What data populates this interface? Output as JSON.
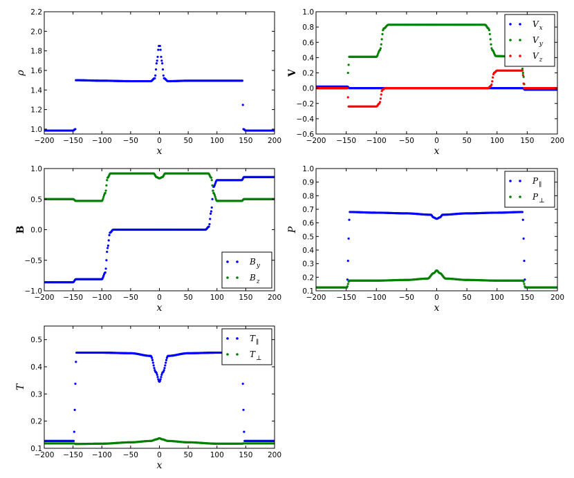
{
  "colors": {
    "blue": "#0000ff",
    "green": "#008000",
    "red": "#ff0000"
  },
  "chart_data": [
    {
      "type": "scatter",
      "ylabel": "ρ",
      "xlabel": "x",
      "xlim": [
        -200,
        200
      ],
      "ylim": [
        0.95,
        2.2
      ],
      "xticks": [
        -200,
        -150,
        -100,
        -50,
        0,
        50,
        100,
        150,
        200
      ],
      "yticks": [
        1.0,
        1.2,
        1.4,
        1.6,
        1.8,
        2.0,
        2.2
      ],
      "ytick_labels": [
        "1.0",
        "1.2",
        "1.4",
        "1.6",
        "1.8",
        "2.0",
        "2.2"
      ],
      "legend": "none",
      "series": [
        {
          "color": "#0000ff",
          "points": [
            [
              -200,
              0.985
            ],
            [
              -150,
              0.985
            ],
            [
              -146,
              1.0
            ],
            [
              -145,
              1.5
            ],
            [
              -100,
              1.495
            ],
            [
              -50,
              1.49
            ],
            [
              -15,
              1.49
            ],
            [
              -8,
              1.52
            ],
            [
              -4,
              1.7
            ],
            [
              -1,
              1.85
            ],
            [
              1,
              1.85
            ],
            [
              4,
              1.7
            ],
            [
              8,
              1.52
            ],
            [
              15,
              1.49
            ],
            [
              50,
              1.495
            ],
            [
              100,
              1.495
            ],
            [
              144,
              1.495
            ],
            [
              146,
              1.0
            ],
            [
              150,
              0.985
            ],
            [
              200,
              0.985
            ]
          ]
        }
      ]
    },
    {
      "type": "scatter",
      "ylabel": "V",
      "xlabel": "x",
      "xlim": [
        -200,
        200
      ],
      "ylim": [
        -0.6,
        1.0
      ],
      "xticks": [
        -200,
        -150,
        -100,
        -50,
        0,
        50,
        100,
        150,
        200
      ],
      "yticks": [
        -0.6,
        -0.4,
        -0.2,
        0.0,
        0.2,
        0.4,
        0.6,
        0.8,
        1.0
      ],
      "ytick_labels": [
        "−0.6",
        "−0.4",
        "−0.2",
        "0.0",
        "0.2",
        "0.4",
        "0.6",
        "0.8",
        "1.0"
      ],
      "legend": "top-right",
      "series": [
        {
          "name": "V",
          "sub": "x",
          "color": "#0000ff",
          "points": [
            [
              -200,
              0.02
            ],
            [
              -148,
              0.02
            ],
            [
              -145,
              0.0
            ],
            [
              143,
              0.0
            ],
            [
              146,
              -0.02
            ],
            [
              200,
              -0.02
            ]
          ]
        },
        {
          "name": "V",
          "sub": "y",
          "color": "#008000",
          "points": [
            [
              -200,
              0.0
            ],
            [
              -148,
              0.0
            ],
            [
              -147,
              0.2
            ],
            [
              -145,
              0.41
            ],
            [
              -100,
              0.41
            ],
            [
              -94,
              0.5
            ],
            [
              -88,
              0.78
            ],
            [
              -80,
              0.83
            ],
            [
              80,
              0.83
            ],
            [
              86,
              0.78
            ],
            [
              92,
              0.5
            ],
            [
              98,
              0.42
            ],
            [
              140,
              0.41
            ],
            [
              143,
              0.2
            ],
            [
              146,
              0.0
            ],
            [
              200,
              0.0
            ]
          ]
        },
        {
          "name": "V",
          "sub": "z",
          "color": "#ff0000",
          "points": [
            [
              -200,
              0.0
            ],
            [
              -148,
              0.0
            ],
            [
              -146,
              -0.24
            ],
            [
              -100,
              -0.24
            ],
            [
              -95,
              -0.2
            ],
            [
              -90,
              -0.02
            ],
            [
              -85,
              0.0
            ],
            [
              85,
              0.0
            ],
            [
              90,
              0.03
            ],
            [
              95,
              0.2
            ],
            [
              100,
              0.23
            ],
            [
              142,
              0.23
            ],
            [
              145,
              0.0
            ],
            [
              200,
              0.0
            ]
          ]
        }
      ]
    },
    {
      "type": "scatter",
      "ylabel": "B",
      "xlabel": "x",
      "xlim": [
        -200,
        200
      ],
      "ylim": [
        -1.0,
        1.0
      ],
      "xticks": [
        -200,
        -150,
        -100,
        -50,
        0,
        50,
        100,
        150,
        200
      ],
      "yticks": [
        -1.0,
        -0.5,
        0.0,
        0.5,
        1.0
      ],
      "ytick_labels": [
        "−1.0",
        "−0.5",
        "0.0",
        "0.5",
        "1.0"
      ],
      "legend": "bottom-right",
      "series": [
        {
          "name": "B",
          "sub": "y",
          "color": "#0000ff",
          "points": [
            [
              -200,
              -0.86
            ],
            [
              -150,
              -0.86
            ],
            [
              -145,
              -0.81
            ],
            [
              -100,
              -0.81
            ],
            [
              -94,
              -0.7
            ],
            [
              -90,
              -0.3
            ],
            [
              -86,
              -0.05
            ],
            [
              -80,
              0.0
            ],
            [
              80,
              0.0
            ],
            [
              86,
              0.05
            ],
            [
              90,
              0.3
            ],
            [
              94,
              0.7
            ],
            [
              100,
              0.81
            ],
            [
              143,
              0.81
            ],
            [
              147,
              0.86
            ],
            [
              200,
              0.86
            ]
          ]
        },
        {
          "name": "B",
          "sub": "z",
          "color": "#008000",
          "points": [
            [
              -200,
              0.5
            ],
            [
              -150,
              0.5
            ],
            [
              -145,
              0.47
            ],
            [
              -100,
              0.47
            ],
            [
              -94,
              0.6
            ],
            [
              -90,
              0.85
            ],
            [
              -85,
              0.92
            ],
            [
              -10,
              0.92
            ],
            [
              -5,
              0.86
            ],
            [
              0,
              0.84
            ],
            [
              5,
              0.86
            ],
            [
              10,
              0.92
            ],
            [
              85,
              0.92
            ],
            [
              90,
              0.85
            ],
            [
              94,
              0.6
            ],
            [
              100,
              0.47
            ],
            [
              143,
              0.47
            ],
            [
              147,
              0.5
            ],
            [
              200,
              0.5
            ]
          ]
        }
      ]
    },
    {
      "type": "scatter",
      "ylabel": "P",
      "xlabel": "x",
      "xlim": [
        -200,
        200
      ],
      "ylim": [
        0.1,
        1.0
      ],
      "xticks": [
        -200,
        -150,
        -100,
        -50,
        0,
        50,
        100,
        150,
        200
      ],
      "yticks": [
        0.1,
        0.2,
        0.3,
        0.4,
        0.5,
        0.6,
        0.7,
        0.8,
        0.9,
        1.0
      ],
      "ytick_labels": [
        "0.1",
        "0.2",
        "0.3",
        "0.4",
        "0.5",
        "0.6",
        "0.7",
        "0.8",
        "0.9",
        "1.0"
      ],
      "legend": "top-right",
      "series": [
        {
          "name": "P",
          "sub": "∥",
          "color": "#0000ff",
          "points": [
            [
              -200,
              0.125
            ],
            [
              -149,
              0.125
            ],
            [
              -144,
              0.68
            ],
            [
              -100,
              0.675
            ],
            [
              -50,
              0.67
            ],
            [
              -10,
              0.66
            ],
            [
              -5,
              0.64
            ],
            [
              0,
              0.63
            ],
            [
              5,
              0.64
            ],
            [
              10,
              0.66
            ],
            [
              50,
              0.67
            ],
            [
              100,
              0.675
            ],
            [
              142,
              0.68
            ],
            [
              147,
              0.125
            ],
            [
              200,
              0.125
            ]
          ]
        },
        {
          "name": "P",
          "sub": "⊥",
          "color": "#008000",
          "points": [
            [
              -200,
              0.125
            ],
            [
              -149,
              0.125
            ],
            [
              -145,
              0.175
            ],
            [
              -100,
              0.175
            ],
            [
              -50,
              0.18
            ],
            [
              -15,
              0.19
            ],
            [
              -5,
              0.23
            ],
            [
              0,
              0.25
            ],
            [
              5,
              0.23
            ],
            [
              15,
              0.19
            ],
            [
              50,
              0.18
            ],
            [
              100,
              0.175
            ],
            [
              143,
              0.175
            ],
            [
              147,
              0.125
            ],
            [
              200,
              0.125
            ]
          ]
        }
      ]
    },
    {
      "type": "scatter",
      "ylabel": "T",
      "xlabel": "x",
      "xlim": [
        -200,
        200
      ],
      "ylim": [
        0.1,
        0.55
      ],
      "xticks": [
        -200,
        -150,
        -100,
        -50,
        0,
        50,
        100,
        150,
        200
      ],
      "yticks": [
        0.1,
        0.2,
        0.3,
        0.4,
        0.5
      ],
      "ytick_labels": [
        "0.1",
        "0.2",
        "0.3",
        "0.4",
        "0.5"
      ],
      "legend": "top-right",
      "series": [
        {
          "name": "T",
          "sub": "∥",
          "color": "#0000ff",
          "points": [
            [
              -200,
              0.127
            ],
            [
              -149,
              0.127
            ],
            [
              -144,
              0.452
            ],
            [
              -100,
              0.452
            ],
            [
              -50,
              0.45
            ],
            [
              -15,
              0.44
            ],
            [
              -6,
              0.38
            ],
            [
              0,
              0.345
            ],
            [
              6,
              0.38
            ],
            [
              15,
              0.44
            ],
            [
              50,
              0.45
            ],
            [
              100,
              0.452
            ],
            [
              143,
              0.452
            ],
            [
              148,
              0.127
            ],
            [
              200,
              0.127
            ]
          ]
        },
        {
          "name": "T",
          "sub": "⊥",
          "color": "#008000",
          "points": [
            [
              -200,
              0.118
            ],
            [
              -149,
              0.118
            ],
            [
              -145,
              0.116
            ],
            [
              -100,
              0.117
            ],
            [
              -50,
              0.122
            ],
            [
              -15,
              0.127
            ],
            [
              -5,
              0.133
            ],
            [
              0,
              0.137
            ],
            [
              5,
              0.133
            ],
            [
              15,
              0.127
            ],
            [
              50,
              0.122
            ],
            [
              100,
              0.117
            ],
            [
              143,
              0.117
            ],
            [
              147,
              0.118
            ],
            [
              200,
              0.118
            ]
          ]
        }
      ]
    }
  ]
}
